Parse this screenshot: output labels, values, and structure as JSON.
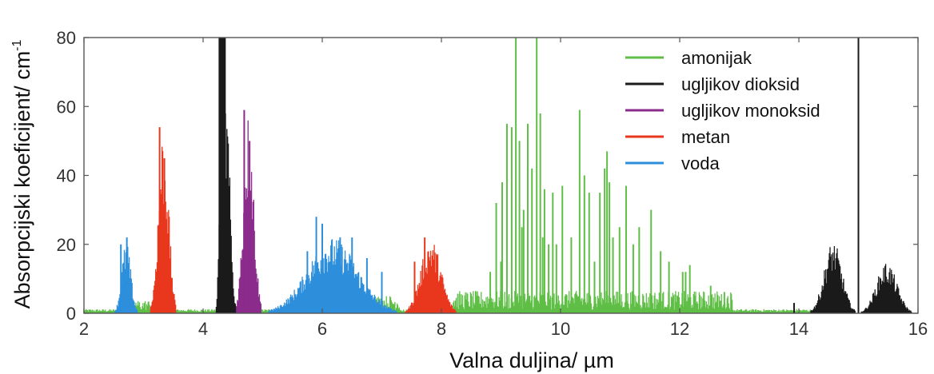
{
  "chart_data": {
    "type": "line",
    "title": "",
    "xlabel": "Valna duljina/ µm",
    "ylabel_main": "Absorpcijski koeficijent/ cm",
    "ylabel_sup": "-1",
    "xlim": [
      2,
      16
    ],
    "ylim": [
      0,
      80
    ],
    "x_ticks": [
      2,
      4,
      6,
      8,
      10,
      12,
      14,
      16
    ],
    "y_ticks": [
      0,
      20,
      40,
      60,
      80
    ],
    "grid": false,
    "legend_position": "top-right",
    "series": [
      {
        "name": "amonijak",
        "color": "#5fbe46",
        "bands": [
          {
            "x_min": 2.0,
            "x_max": 14.9,
            "baseline": 1
          },
          {
            "x_min": 2.8,
            "x_max": 3.5,
            "base": 3
          },
          {
            "x_min": 5.6,
            "x_max": 7.3,
            "base": 4
          },
          {
            "x_min": 8.2,
            "x_max": 12.9,
            "base": 5
          }
        ],
        "peaks": [
          [
            8.82,
            12
          ],
          [
            8.92,
            32
          ],
          [
            9.02,
            38
          ],
          [
            9.1,
            55
          ],
          [
            9.18,
            54
          ],
          [
            9.25,
            80
          ],
          [
            9.31,
            50
          ],
          [
            9.38,
            30
          ],
          [
            9.45,
            55
          ],
          [
            9.52,
            42
          ],
          [
            9.6,
            80
          ],
          [
            9.66,
            58
          ],
          [
            9.73,
            36
          ],
          [
            9.8,
            20
          ],
          [
            9.87,
            35
          ],
          [
            9.93,
            20
          ],
          [
            10.03,
            37
          ],
          [
            10.18,
            22
          ],
          [
            10.32,
            59
          ],
          [
            10.4,
            40
          ],
          [
            10.48,
            35
          ],
          [
            10.57,
            15
          ],
          [
            10.66,
            35
          ],
          [
            10.74,
            42
          ],
          [
            10.78,
            47
          ],
          [
            10.82,
            38
          ],
          [
            10.88,
            22
          ],
          [
            10.99,
            25
          ],
          [
            11.1,
            37
          ],
          [
            11.22,
            20
          ],
          [
            11.32,
            25
          ],
          [
            11.52,
            30
          ],
          [
            11.68,
            18
          ],
          [
            11.82,
            15
          ],
          [
            12.05,
            12
          ],
          [
            12.1,
            12
          ],
          [
            12.17,
            14
          ],
          [
            12.52,
            8
          ],
          [
            12.75,
            6
          ],
          [
            9.0,
            15
          ],
          [
            9.35,
            25
          ],
          [
            9.7,
            22
          ]
        ]
      },
      {
        "name": "ugljikov dioksid",
        "color": "#1a1a1a",
        "bands": [
          {
            "x_min": 4.22,
            "x_max": 4.42,
            "peak": 80
          },
          {
            "x_min": 4.22,
            "x_max": 4.55,
            "peak": 63
          },
          {
            "x_min": 14.2,
            "x_max": 14.95,
            "peak": 21
          },
          {
            "x_min": 15.05,
            "x_max": 15.9,
            "peak": 15
          }
        ],
        "peaks": [
          [
            15.0,
            80
          ],
          [
            13.92,
            3
          ]
        ]
      },
      {
        "name": "ugljikov monoksid",
        "color": "#8b2b8b",
        "bands": [
          {
            "x_min": 4.55,
            "x_max": 4.98,
            "peak": 59
          }
        ],
        "peaks": [
          [
            4.69,
            59
          ],
          [
            4.78,
            50
          ]
        ]
      },
      {
        "name": "metan",
        "color": "#e8371c",
        "bands": [
          {
            "x_min": 3.12,
            "x_max": 3.55,
            "peak": 54
          },
          {
            "x_min": 7.4,
            "x_max": 8.25,
            "peak": 22
          }
        ],
        "peaks": [
          [
            3.27,
            54
          ],
          [
            3.35,
            45
          ],
          [
            7.72,
            22
          ],
          [
            7.55,
            15
          ]
        ]
      },
      {
        "name": "voda",
        "color": "#2d8fdc",
        "bands": [
          {
            "x_min": 2.52,
            "x_max": 2.9,
            "peak": 21
          },
          {
            "x_min": 5.1,
            "x_max": 7.25,
            "peak": 22
          }
        ],
        "peaks": [
          [
            2.62,
            20
          ],
          [
            2.72,
            22
          ],
          [
            5.9,
            28
          ],
          [
            6.0,
            26
          ],
          [
            6.3,
            22
          ],
          [
            6.5,
            22
          ],
          [
            5.75,
            18
          ],
          [
            6.75,
            16
          ],
          [
            7.0,
            12
          ]
        ]
      }
    ]
  }
}
